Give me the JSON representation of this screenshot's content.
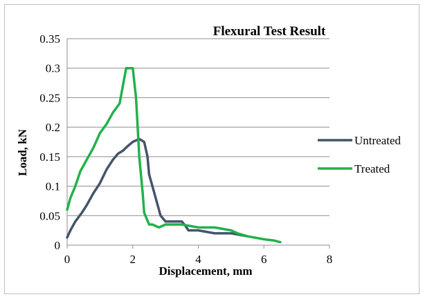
{
  "chart_data": {
    "type": "line",
    "title": "Flexural  Test Result",
    "xlabel": "Displacement, mm",
    "ylabel": "Load, kN",
    "xlim": [
      0,
      8
    ],
    "ylim": [
      0,
      0.35
    ],
    "xticks": [
      "0",
      "2",
      "4",
      "6",
      "8"
    ],
    "yticks": [
      "0",
      "0.05",
      "0.1",
      "0.15",
      "0.2",
      "0.25",
      "0.3",
      "0.35"
    ],
    "grid": "horizontal",
    "legend_position": "right",
    "series": [
      {
        "name": "Untreated",
        "color": "#44546a",
        "x": [
          0,
          0.1,
          0.25,
          0.45,
          0.6,
          0.8,
          1.0,
          1.2,
          1.4,
          1.55,
          1.7,
          1.85,
          2.0,
          2.2,
          2.35,
          2.45,
          2.5,
          2.6,
          2.7,
          2.85,
          3.0,
          3.2,
          3.5,
          3.6,
          3.7,
          4.0,
          4.5,
          5.0,
          5.5
        ],
        "y": [
          0.013,
          0.025,
          0.04,
          0.055,
          0.068,
          0.088,
          0.105,
          0.128,
          0.145,
          0.155,
          0.16,
          0.168,
          0.175,
          0.18,
          0.175,
          0.15,
          0.12,
          0.1,
          0.08,
          0.05,
          0.04,
          0.04,
          0.04,
          0.033,
          0.025,
          0.025,
          0.02,
          0.02,
          0.015
        ]
      },
      {
        "name": "Treated",
        "color": "#22b14c",
        "x": [
          0,
          0.1,
          0.25,
          0.4,
          0.6,
          0.8,
          1.0,
          1.2,
          1.4,
          1.6,
          1.7,
          1.8,
          2.0,
          2.1,
          2.15,
          2.2,
          2.3,
          2.35,
          2.5,
          2.6,
          2.8,
          3.0,
          3.5,
          4.0,
          4.5,
          5.0,
          5.2,
          5.5,
          6.0,
          6.3,
          6.5
        ],
        "y": [
          0.06,
          0.08,
          0.1,
          0.125,
          0.145,
          0.165,
          0.19,
          0.205,
          0.225,
          0.24,
          0.27,
          0.3,
          0.3,
          0.25,
          0.2,
          0.15,
          0.09,
          0.055,
          0.035,
          0.035,
          0.03,
          0.035,
          0.035,
          0.03,
          0.03,
          0.025,
          0.02,
          0.015,
          0.01,
          0.008,
          0.005
        ]
      }
    ]
  }
}
